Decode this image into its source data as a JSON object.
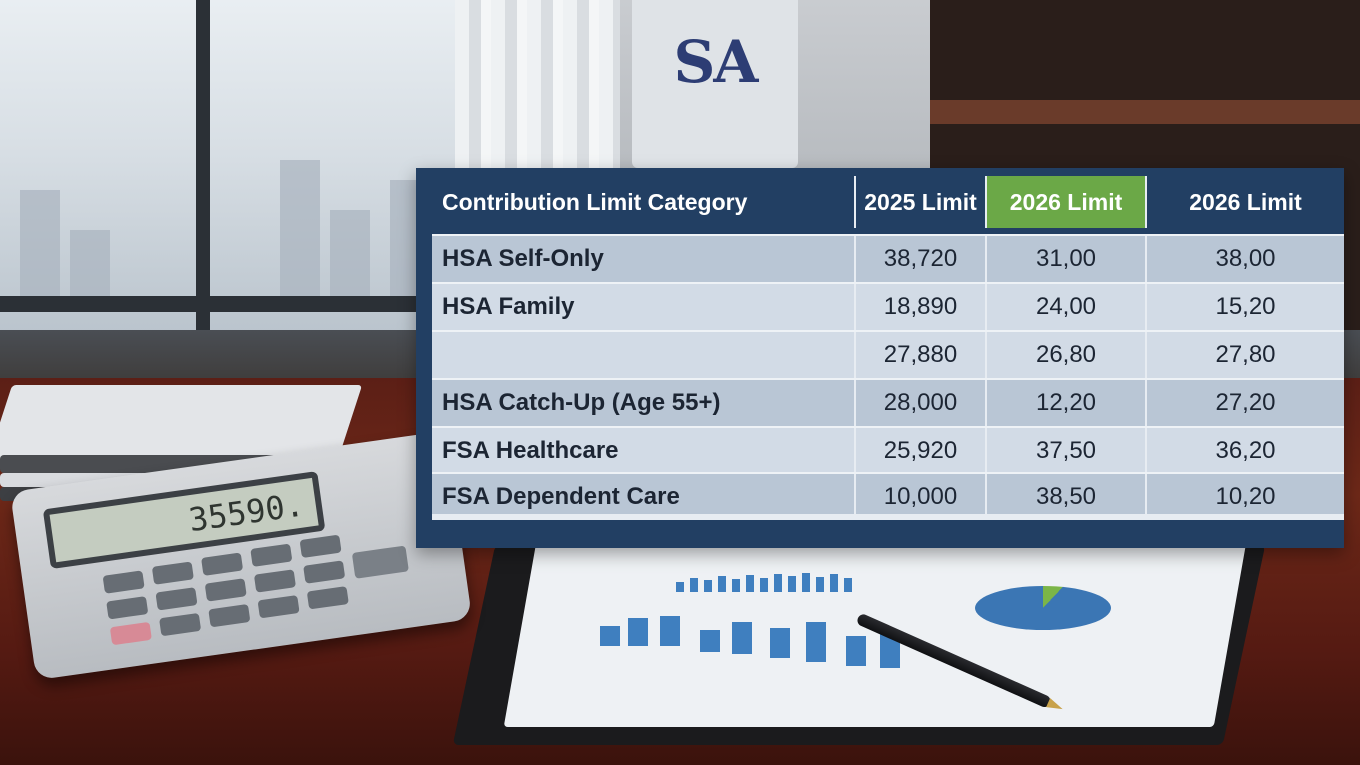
{
  "background": {
    "banner_text": "SA",
    "calculator_display": "35590."
  },
  "table": {
    "headers": [
      "Contribution Limit Category",
      "2025 Limit",
      "2026 Limit",
      "2026 Limit"
    ],
    "rows": [
      {
        "category": "HSA Self-Only",
        "values": [
          "38,720",
          "31,00",
          "38,00"
        ]
      },
      {
        "category": "HSA Family",
        "values": [
          "18,890",
          "24,00",
          "15,20"
        ]
      },
      {
        "category": "",
        "values": [
          "27,880",
          "26,80",
          "27,80"
        ]
      },
      {
        "category": "HSA Catch-Up (Age 55+)",
        "values": [
          "28,000",
          "12,20",
          "27,20"
        ]
      },
      {
        "category": "FSA Healthcare",
        "values": [
          "25,920",
          "37,50",
          "36,20"
        ]
      },
      {
        "category": "FSA Dependent Care",
        "values": [
          "10,000",
          "38,50",
          "10,20"
        ]
      }
    ]
  },
  "colors": {
    "header_bg": "#223f63",
    "highlight_header": "#6ba847",
    "row_dark": "#b9c6d5",
    "row_light": "#d2dbe6"
  }
}
